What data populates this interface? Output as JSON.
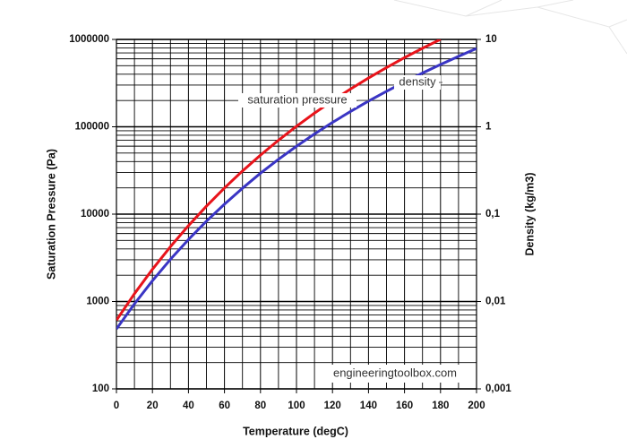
{
  "chart_data": {
    "type": "line",
    "xlabel": "Temperature (degC)",
    "ylabel": "Saturation Pressure (Pa)",
    "y2label": "Density (kg/m3)",
    "xlim": [
      0,
      200
    ],
    "xticks": [
      0,
      20,
      40,
      60,
      80,
      100,
      120,
      140,
      160,
      180,
      200
    ],
    "ylim": [
      100,
      1000000
    ],
    "yticks": [
      100,
      1000,
      10000,
      100000,
      1000000
    ],
    "y2lim": [
      0.001,
      10
    ],
    "y2ticks": [
      {
        "value": 0.001,
        "label": "0,001"
      },
      {
        "value": 0.01,
        "label": "0,01"
      },
      {
        "value": 0.1,
        "label": "0,1"
      },
      1,
      10
    ],
    "log_y": true,
    "log_y2": true,
    "grid": true,
    "series": [
      {
        "name": "saturation pressure",
        "color": "#e8141b",
        "axis": "y",
        "x": [
          0,
          10,
          20,
          30,
          40,
          50,
          60,
          70,
          80,
          90,
          100,
          110,
          120,
          130,
          140,
          150,
          160,
          170,
          180
        ],
        "values": [
          611,
          1228,
          2339,
          4246,
          7384,
          12350,
          19940,
          31190,
          47410,
          70140,
          101420,
          143380,
          198670,
          270280,
          361540,
          476160,
          618230,
          792180,
          1002800
        ]
      },
      {
        "name": "density",
        "color": "#3a35c4",
        "axis": "y2",
        "x": [
          0,
          10,
          20,
          30,
          40,
          50,
          60,
          70,
          80,
          90,
          100,
          110,
          120,
          130,
          140,
          150,
          160,
          170,
          180,
          190,
          200
        ],
        "values": [
          0.00485,
          0.0094,
          0.0173,
          0.0304,
          0.0512,
          0.0831,
          0.13,
          0.198,
          0.294,
          0.424,
          0.598,
          0.827,
          1.122,
          1.497,
          1.967,
          2.548,
          3.26,
          4.123,
          5.16,
          6.397,
          7.864
        ]
      }
    ],
    "watermark": "engineeringtoolbox.com"
  }
}
